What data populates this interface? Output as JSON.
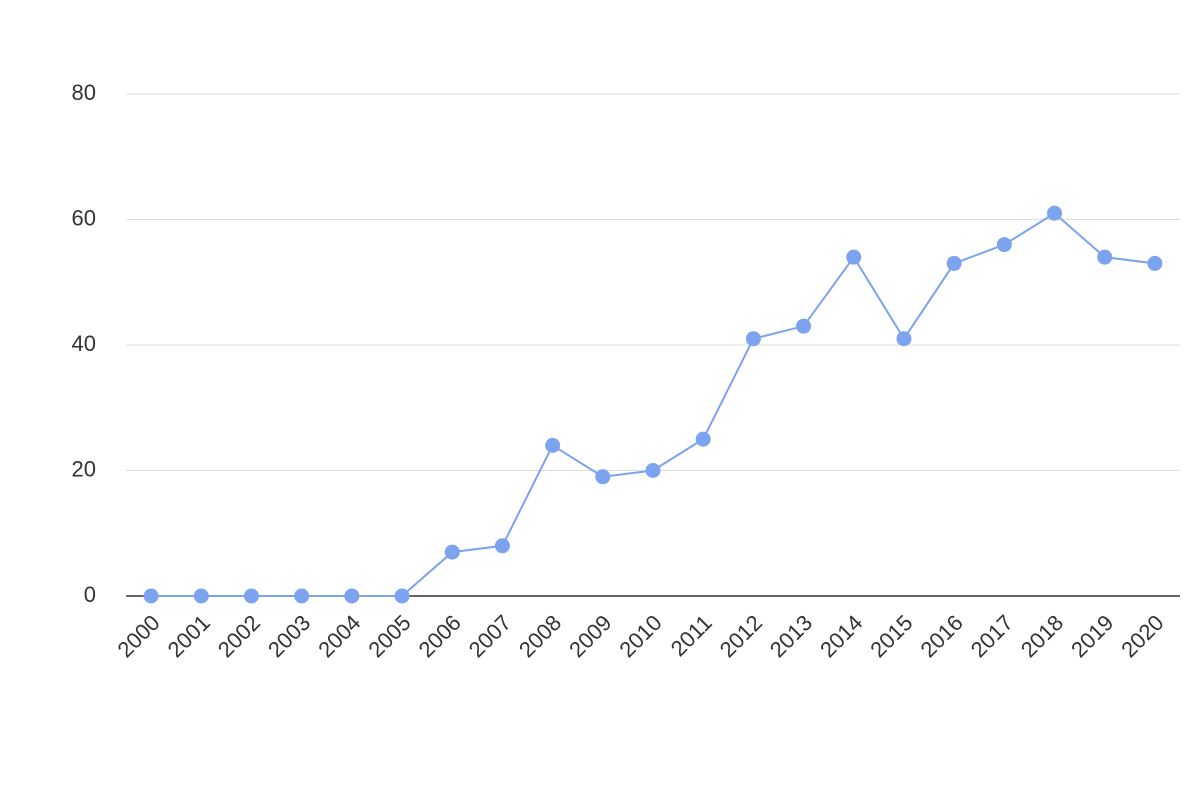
{
  "chart_data": {
    "type": "line",
    "categories": [
      "2000",
      "2001",
      "2002",
      "2003",
      "2004",
      "2005",
      "2006",
      "2007",
      "2008",
      "2009",
      "2010",
      "2011",
      "2012",
      "2013",
      "2014",
      "2015",
      "2016",
      "2017",
      "2018",
      "2019",
      "2020"
    ],
    "series": [
      {
        "color": "#7ba3ef",
        "values": [
          0,
          0,
          0,
          0,
          0,
          0,
          7,
          8,
          24,
          19,
          20,
          25,
          41,
          43,
          54,
          41,
          53,
          56,
          61,
          54,
          53
        ]
      }
    ],
    "ylim": [
      0,
      80
    ],
    "yticks": [
      0,
      20,
      40,
      60,
      80
    ],
    "grid": true
  }
}
